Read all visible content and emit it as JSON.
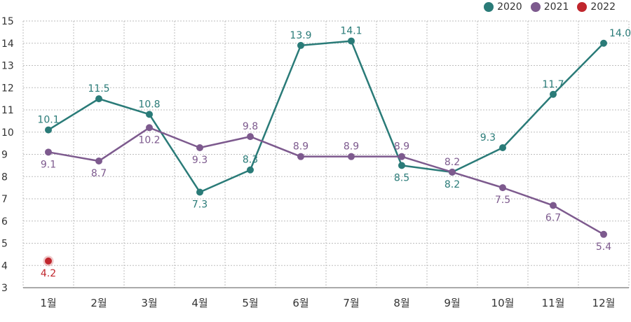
{
  "chart_data": {
    "type": "line",
    "categories": [
      "1월",
      "2월",
      "3월",
      "4월",
      "5월",
      "6월",
      "7월",
      "8월",
      "9월",
      "10월",
      "11월",
      "12월"
    ],
    "ylim": [
      3,
      15
    ],
    "yticks": [
      3,
      4,
      5,
      6,
      7,
      8,
      9,
      10,
      11,
      12,
      13,
      14,
      15
    ],
    "grid": true,
    "legend_position": "top-right",
    "series": [
      {
        "name": "2020",
        "color": "#2a7b78",
        "values": [
          10.1,
          11.5,
          10.8,
          7.3,
          8.3,
          13.9,
          14.1,
          8.5,
          8.2,
          9.3,
          11.7,
          14.0
        ]
      },
      {
        "name": "2021",
        "color": "#7d5a8e",
        "values": [
          9.1,
          8.7,
          10.2,
          9.3,
          9.8,
          8.9,
          8.9,
          8.9,
          8.2,
          7.5,
          6.7,
          5.4
        ]
      },
      {
        "name": "2022",
        "color": "#c0262d",
        "values": [
          4.2,
          null,
          null,
          null,
          null,
          null,
          null,
          null,
          null,
          null,
          null,
          null
        ]
      }
    ]
  }
}
